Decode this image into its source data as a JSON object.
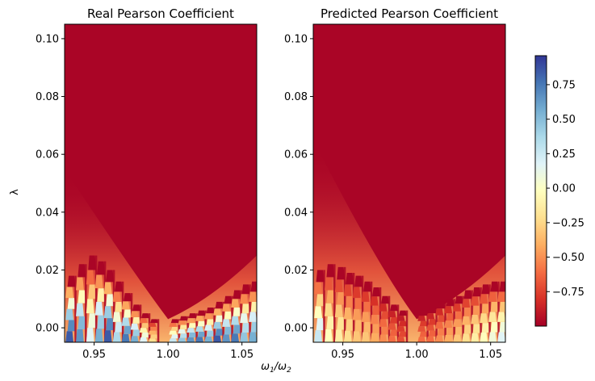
{
  "chart_data": [
    {
      "type": "heatmap",
      "title": "Real Pearson Coefficient",
      "xlabel": "",
      "ylabel": "λ",
      "xlim": [
        0.93,
        1.06
      ],
      "ylim": [
        -0.005,
        0.105
      ],
      "xticks": [
        0.95,
        1.0,
        1.05
      ],
      "xtick_labels": [
        "0.95",
        "1.00",
        "1.05"
      ],
      "yticks": [
        0.0,
        0.02,
        0.04,
        0.06,
        0.08,
        0.1
      ],
      "ytick_labels": [
        "0.00",
        "0.02",
        "0.04",
        "0.06",
        "0.08",
        "0.10"
      ],
      "background_value": -0.98,
      "stripe_columns": [
        {
          "x": 0.934,
          "height": 0.018,
          "min_value": 0.9
        },
        {
          "x": 0.941,
          "height": 0.022,
          "min_value": 0.7
        },
        {
          "x": 0.948,
          "height": 0.025,
          "min_value": 0.2
        },
        {
          "x": 0.954,
          "height": 0.023,
          "min_value": 0.6
        },
        {
          "x": 0.96,
          "height": 0.02,
          "min_value": 0.9
        },
        {
          "x": 0.966,
          "height": 0.016,
          "min_value": 0.4
        },
        {
          "x": 0.972,
          "height": 0.012,
          "min_value": 0.8
        },
        {
          "x": 0.978,
          "height": 0.008,
          "min_value": 0.6
        },
        {
          "x": 0.984,
          "height": 0.005,
          "min_value": 0.2
        },
        {
          "x": 0.99,
          "height": 0.003,
          "min_value": -0.2
        },
        {
          "x": 1.004,
          "height": 0.003,
          "min_value": 0.3
        },
        {
          "x": 1.01,
          "height": 0.004,
          "min_value": 0.5
        },
        {
          "x": 1.016,
          "height": 0.005,
          "min_value": 0.7
        },
        {
          "x": 1.022,
          "height": 0.006,
          "min_value": 0.8
        },
        {
          "x": 1.028,
          "height": 0.007,
          "min_value": 0.6
        },
        {
          "x": 1.034,
          "height": 0.009,
          "min_value": 0.9
        },
        {
          "x": 1.04,
          "height": 0.011,
          "min_value": 0.7
        },
        {
          "x": 1.046,
          "height": 0.013,
          "min_value": 0.8
        },
        {
          "x": 1.052,
          "height": 0.015,
          "min_value": 0.5
        },
        {
          "x": 1.058,
          "height": 0.016,
          "min_value": 0.6
        }
      ]
    },
    {
      "type": "heatmap",
      "title": "Predicted Pearson Coefficient",
      "xlabel": "",
      "ylabel": "",
      "xlim": [
        0.93,
        1.06
      ],
      "ylim": [
        -0.005,
        0.105
      ],
      "xticks": [
        0.95,
        1.0,
        1.05
      ],
      "xtick_labels": [
        "0.95",
        "1.00",
        "1.05"
      ],
      "yticks": [
        0.0,
        0.02,
        0.04,
        0.06,
        0.08,
        0.1
      ],
      "ytick_labels": [
        "0.00",
        "0.02",
        "0.04",
        "0.06",
        "0.08",
        "0.10"
      ],
      "background_value": -0.98,
      "stripe_columns": [
        {
          "x": 0.934,
          "height": 0.02,
          "min_value": 0.3
        },
        {
          "x": 0.941,
          "height": 0.022,
          "min_value": 0.0
        },
        {
          "x": 0.948,
          "height": 0.021,
          "min_value": -0.1
        },
        {
          "x": 0.954,
          "height": 0.019,
          "min_value": -0.2
        },
        {
          "x": 0.96,
          "height": 0.018,
          "min_value": -0.3
        },
        {
          "x": 0.966,
          "height": 0.016,
          "min_value": -0.3
        },
        {
          "x": 0.972,
          "height": 0.014,
          "min_value": -0.4
        },
        {
          "x": 0.978,
          "height": 0.011,
          "min_value": -0.5
        },
        {
          "x": 0.984,
          "height": 0.008,
          "min_value": -0.6
        },
        {
          "x": 0.99,
          "height": 0.006,
          "min_value": -0.7
        },
        {
          "x": 1.004,
          "height": 0.006,
          "min_value": -0.6
        },
        {
          "x": 1.01,
          "height": 0.007,
          "min_value": -0.6
        },
        {
          "x": 1.016,
          "height": 0.009,
          "min_value": -0.5
        },
        {
          "x": 1.022,
          "height": 0.01,
          "min_value": -0.4
        },
        {
          "x": 1.028,
          "height": 0.011,
          "min_value": -0.3
        },
        {
          "x": 1.034,
          "height": 0.013,
          "min_value": -0.2
        },
        {
          "x": 1.04,
          "height": 0.014,
          "min_value": -0.1
        },
        {
          "x": 1.046,
          "height": 0.015,
          "min_value": 0.0
        },
        {
          "x": 1.052,
          "height": 0.016,
          "min_value": 0.1
        },
        {
          "x": 1.058,
          "height": 0.016,
          "min_value": 0.2
        }
      ]
    }
  ],
  "shared_xlabel": "ω1/ω2",
  "colorbar": {
    "colormap": "RdYlBu",
    "range": [
      -1.0,
      0.96
    ],
    "ticks": [
      -0.75,
      -0.5,
      -0.25,
      0.0,
      0.25,
      0.5,
      0.75
    ],
    "tick_labels": [
      "−0.75",
      "−0.50",
      "−0.25",
      "0.00",
      "0.25",
      "0.50",
      "0.75"
    ]
  },
  "colors": {
    "low": "#a50026",
    "mid": "#ffffbf",
    "high": "#313695"
  }
}
